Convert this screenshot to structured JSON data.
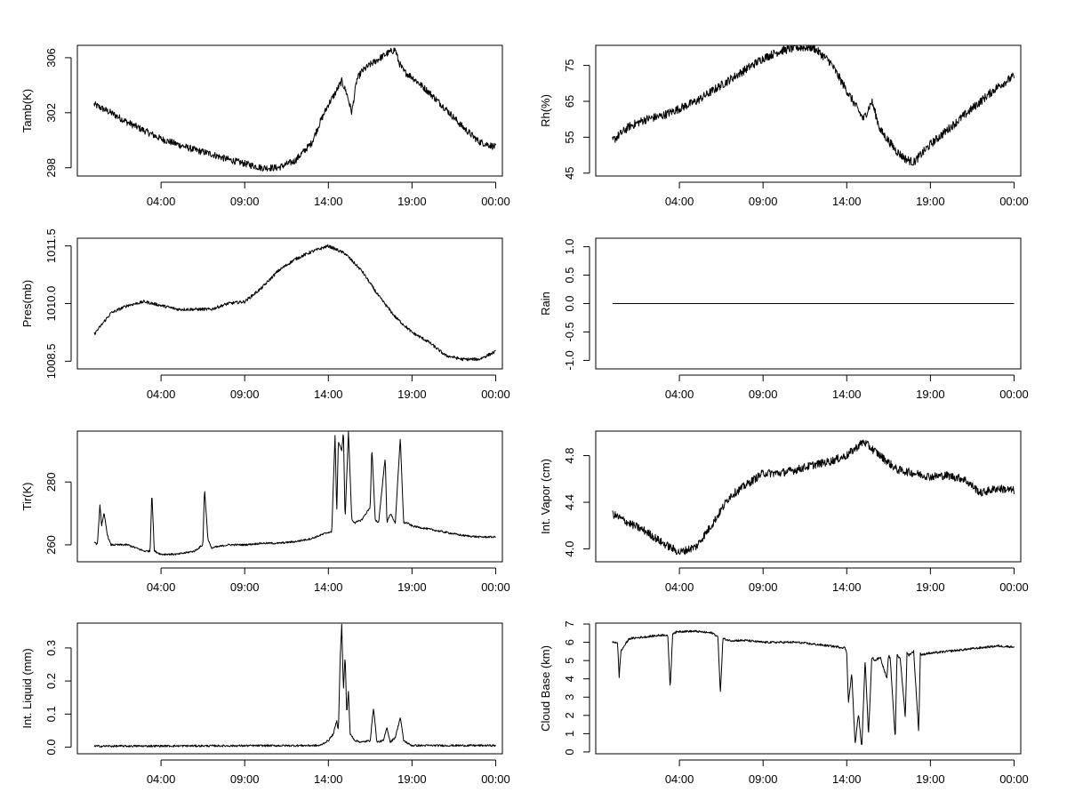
{
  "chart_data": [
    {
      "id": "tamb",
      "type": "line",
      "ylabel": "Tamb(K)",
      "xlim": [
        -1.0,
        24.4
      ],
      "ylim": [
        297.4,
        306.9
      ],
      "xticks": [
        4,
        9,
        14,
        19,
        24
      ],
      "xtick_labels": [
        "04:00",
        "09:00",
        "14:00",
        "19:00",
        "00:00"
      ],
      "yticks": [
        298,
        302,
        306
      ],
      "ytick_labels": [
        "298",
        "302",
        "306"
      ],
      "noise": 0.25,
      "series": [
        {
          "x": [
            0,
            1,
            2,
            3,
            4,
            5,
            6,
            7,
            8,
            9,
            10,
            11,
            12,
            13,
            13.5,
            14,
            14.4,
            14.8,
            15.1,
            15.4,
            15.7,
            16,
            16.5,
            17,
            17.5,
            18,
            18.2,
            18.5,
            19,
            20,
            21,
            22,
            23,
            24
          ],
          "y": [
            302.6,
            302.0,
            301.3,
            300.7,
            300.1,
            299.7,
            299.3,
            299.0,
            298.6,
            298.3,
            298.0,
            298.0,
            298.5,
            299.8,
            301.3,
            302.6,
            303.4,
            304.3,
            303.4,
            302.0,
            304.4,
            305.0,
            305.5,
            305.9,
            306.3,
            306.6,
            305.7,
            305.0,
            304.6,
            303.5,
            302.3,
            301.0,
            299.9,
            299.5
          ]
        }
      ]
    },
    {
      "id": "rh",
      "type": "line",
      "ylabel": "Rh(%)",
      "xlim": [
        -1.0,
        24.4
      ],
      "ylim": [
        44.2,
        80.6
      ],
      "xticks": [
        4,
        9,
        14,
        19,
        24
      ],
      "xtick_labels": [
        "04:00",
        "09:00",
        "14:00",
        "19:00",
        "00:00"
      ],
      "yticks": [
        45,
        55,
        65,
        75
      ],
      "ytick_labels": [
        "45",
        "55",
        "65",
        "75"
      ],
      "noise": 1.2,
      "series": [
        {
          "x": [
            0,
            1,
            2,
            3,
            4,
            5,
            6,
            7,
            8,
            9,
            10,
            11,
            12,
            13,
            14,
            14.5,
            15,
            15.5,
            16,
            17,
            17.5,
            18,
            19,
            20,
            21,
            22,
            23,
            24
          ],
          "y": [
            54,
            58,
            60,
            61,
            63,
            65,
            68,
            71,
            74,
            77,
            79,
            80,
            80,
            76,
            68,
            64,
            60,
            65,
            57,
            51,
            49,
            48,
            53,
            57,
            61,
            65,
            69,
            72
          ]
        }
      ]
    },
    {
      "id": "pres",
      "type": "line",
      "ylabel": "Pres(mb)",
      "xlim": [
        -1.0,
        24.4
      ],
      "ylim": [
        1008.3,
        1011.7
      ],
      "xticks": [
        4,
        9,
        14,
        19,
        24
      ],
      "xtick_labels": [
        "04:00",
        "09:00",
        "14:00",
        "19:00",
        "00:00"
      ],
      "yticks": [
        1008.5,
        1010.0,
        1011.5
      ],
      "ytick_labels": [
        "1008.5",
        "1010.0",
        "1011.5"
      ],
      "noise": 0.04,
      "series": [
        {
          "x": [
            0,
            1,
            2,
            3,
            4,
            5,
            6,
            7,
            8,
            9,
            10,
            11,
            12,
            13,
            14,
            15,
            16,
            17,
            18,
            19,
            20,
            21,
            22,
            23,
            24
          ],
          "y": [
            1009.2,
            1009.75,
            1009.95,
            1010.05,
            1009.95,
            1009.85,
            1009.85,
            1009.85,
            1010.0,
            1010.05,
            1010.4,
            1010.85,
            1011.15,
            1011.35,
            1011.5,
            1011.3,
            1010.85,
            1010.2,
            1009.65,
            1009.25,
            1009.0,
            1008.65,
            1008.55,
            1008.55,
            1008.75
          ]
        }
      ]
    },
    {
      "id": "rain",
      "type": "line",
      "ylabel": "Rain",
      "xlim": [
        -1.0,
        24.4
      ],
      "ylim": [
        -1.15,
        1.15
      ],
      "xticks": [
        4,
        9,
        14,
        19,
        24
      ],
      "xtick_labels": [
        "04:00",
        "09:00",
        "14:00",
        "19:00",
        "00:00"
      ],
      "yticks": [
        -1.0,
        -0.5,
        0.0,
        0.5,
        1.0
      ],
      "ytick_labels": [
        "-1.0",
        "-0.5",
        "0.0",
        "0.5",
        "1.0"
      ],
      "noise": 0,
      "series": [
        {
          "x": [
            0,
            24
          ],
          "y": [
            0,
            0
          ]
        }
      ]
    },
    {
      "id": "tir",
      "type": "line",
      "ylabel": "Tir(K)",
      "xlim": [
        -1.0,
        24.4
      ],
      "ylim": [
        254.6,
        296.2
      ],
      "xticks": [
        4,
        9,
        14,
        19,
        24
      ],
      "xtick_labels": [
        "04:00",
        "09:00",
        "14:00",
        "19:00",
        "00:00"
      ],
      "yticks": [
        260,
        280
      ],
      "ytick_labels": [
        "260",
        "280"
      ],
      "noise": 0.3,
      "series": [
        {
          "x": [
            0,
            0.2,
            0.35,
            0.45,
            0.6,
            0.8,
            1.0,
            2.0,
            3.0,
            3.35,
            3.45,
            3.6,
            4.0,
            5.0,
            6.0,
            6.5,
            6.6,
            6.8,
            7.0,
            8.0,
            9.0,
            10.0,
            11.0,
            12.0,
            13.0,
            14.0,
            14.2,
            14.4,
            14.5,
            14.6,
            14.8,
            14.9,
            15.0,
            15.2,
            15.4,
            15.6,
            16.0,
            16.5,
            16.6,
            16.8,
            17.0,
            17.4,
            17.5,
            17.7,
            18.0,
            18.3,
            18.5,
            18.7,
            19.0,
            20.0,
            21.0,
            22.0,
            23.0,
            24.0
          ],
          "y": [
            261,
            260,
            273,
            266,
            270,
            263,
            260,
            260,
            258,
            258,
            277,
            258,
            257,
            257,
            258,
            260,
            278,
            262,
            259,
            260,
            260,
            260.5,
            260.5,
            261,
            262,
            264,
            264,
            295,
            270,
            293,
            290,
            296,
            268,
            296,
            268,
            267,
            268,
            272,
            291,
            268,
            267,
            288,
            267,
            270,
            267,
            294,
            267,
            267,
            266,
            265,
            264,
            263,
            262.5,
            262.5
          ]
        }
      ]
    },
    {
      "id": "vapor",
      "type": "line",
      "ylabel": "Int. Vapor (cm)",
      "xlim": [
        -1.0,
        24.4
      ],
      "ylim": [
        3.89,
        5.01
      ],
      "xticks": [
        4,
        9,
        14,
        19,
        24
      ],
      "xtick_labels": [
        "04:00",
        "09:00",
        "14:00",
        "19:00",
        "00:00"
      ],
      "yticks": [
        4.0,
        4.4,
        4.8
      ],
      "ytick_labels": [
        "4.0",
        "4.4",
        "4.8"
      ],
      "noise": 0.035,
      "series": [
        {
          "x": [
            0,
            1,
            2,
            3,
            4,
            5,
            6,
            7,
            8,
            9,
            10,
            11,
            12,
            13,
            14,
            15,
            16,
            17,
            18,
            19,
            20,
            21,
            22,
            23,
            24
          ],
          "y": [
            4.3,
            4.22,
            4.15,
            4.05,
            3.97,
            4.02,
            4.22,
            4.45,
            4.55,
            4.65,
            4.65,
            4.68,
            4.72,
            4.75,
            4.8,
            4.92,
            4.8,
            4.68,
            4.65,
            4.62,
            4.63,
            4.6,
            4.48,
            4.52,
            4.5
          ]
        }
      ]
    },
    {
      "id": "liquid",
      "type": "line",
      "ylabel": "Int. Liquid (mm)",
      "xlim": [
        -1.0,
        24.4
      ],
      "ylim": [
        -0.02,
        0.375
      ],
      "xticks": [
        4,
        9,
        14,
        19,
        24
      ],
      "xtick_labels": [
        "04:00",
        "09:00",
        "14:00",
        "19:00",
        "00:00"
      ],
      "yticks": [
        0.0,
        0.1,
        0.2,
        0.3
      ],
      "ytick_labels": [
        "0.0",
        "0.1",
        "0.2",
        "0.3"
      ],
      "noise": 0.003,
      "series": [
        {
          "x": [
            0,
            13.5,
            14.0,
            14.3,
            14.5,
            14.6,
            14.7,
            14.8,
            14.9,
            15.0,
            15.1,
            15.2,
            15.3,
            15.6,
            16.0,
            16.5,
            16.7,
            16.9,
            17.3,
            17.5,
            17.7,
            18.0,
            18.3,
            18.5,
            18.8,
            19.0,
            20.0,
            24.0
          ],
          "y": [
            0.003,
            0.005,
            0.02,
            0.04,
            0.08,
            0.05,
            0.26,
            0.37,
            0.17,
            0.28,
            0.1,
            0.17,
            0.04,
            0.02,
            0.015,
            0.02,
            0.12,
            0.015,
            0.02,
            0.06,
            0.015,
            0.03,
            0.09,
            0.02,
            0.01,
            0.005,
            0.005,
            0.005
          ]
        }
      ]
    },
    {
      "id": "cloudbase",
      "type": "line",
      "ylabel": "Cloud Base (km)",
      "xlim": [
        -1.0,
        24.4
      ],
      "ylim": [
        -0.1,
        7.05
      ],
      "xticks": [
        4,
        9,
        14,
        19,
        24
      ],
      "xtick_labels": [
        "04:00",
        "09:00",
        "14:00",
        "19:00",
        "00:00"
      ],
      "yticks": [
        0,
        1,
        2,
        3,
        4,
        5,
        6,
        7
      ],
      "ytick_labels": [
        "0",
        "1",
        "2",
        "3",
        "4",
        "5",
        "6",
        "7"
      ],
      "noise": 0.06,
      "series": [
        {
          "x": [
            0,
            0.3,
            0.4,
            0.5,
            0.7,
            1.0,
            2.0,
            3.0,
            3.3,
            3.45,
            3.6,
            4.0,
            5.0,
            6.0,
            6.3,
            6.45,
            6.6,
            7.0,
            8.0,
            9.0,
            10.0,
            11.0,
            12.0,
            13.0,
            13.9,
            14.0,
            14.1,
            14.3,
            14.5,
            14.7,
            14.9,
            15.1,
            15.3,
            15.5,
            15.7,
            16.0,
            16.4,
            16.5,
            16.6,
            16.9,
            17.0,
            17.2,
            17.5,
            17.6,
            17.7,
            18.0,
            18.3,
            18.4,
            18.5,
            18.8,
            19.0,
            20.0,
            21.0,
            22.0,
            23.0,
            24.0
          ],
          "y": [
            6.0,
            6.0,
            4.1,
            5.5,
            5.8,
            6.2,
            6.3,
            6.4,
            6.4,
            3.5,
            6.5,
            6.6,
            6.6,
            6.5,
            6.3,
            3.2,
            6.2,
            6.1,
            6.1,
            6.0,
            6.0,
            6.0,
            5.9,
            5.8,
            5.7,
            5.4,
            2.7,
            4.3,
            0.4,
            2.1,
            0.2,
            5.1,
            0.9,
            5.2,
            5.0,
            5.2,
            4.0,
            5.3,
            5.1,
            0.7,
            5.3,
            5.1,
            1.9,
            5.4,
            5.3,
            5.5,
            1.1,
            5.4,
            5.3,
            5.4,
            5.4,
            5.5,
            5.6,
            5.7,
            5.8,
            5.75
          ]
        }
      ]
    }
  ]
}
